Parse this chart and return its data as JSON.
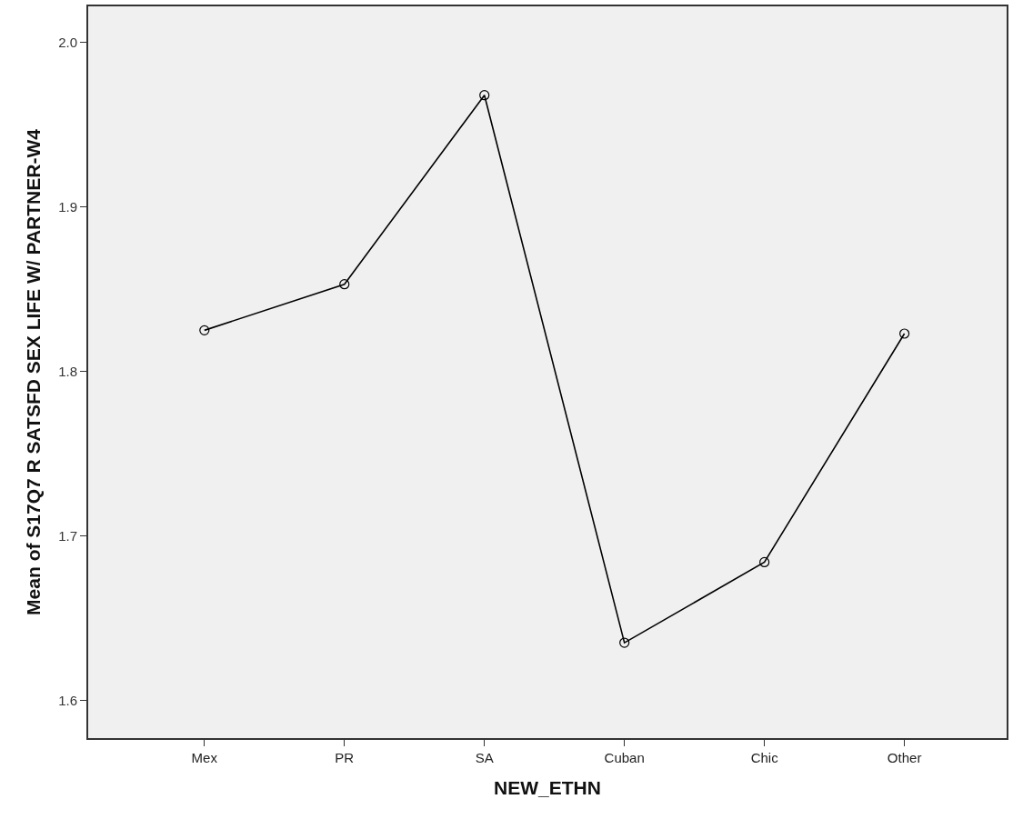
{
  "chart_data": {
    "type": "line",
    "xlabel": "NEW_ETHN",
    "ylabel": "Mean of S17Q7 R SATSFD SEX LIFE W/ PARTNER-W4",
    "categories": [
      "Mex",
      "PR",
      "SA",
      "Cuban",
      "Chic",
      "Other"
    ],
    "series": [
      {
        "color": "#000000",
        "values": [
          1.825,
          1.853,
          1.968,
          1.635,
          1.684,
          1.823
        ]
      }
    ],
    "ylim": [
      1.577,
      2.022
    ],
    "yticks": [
      {
        "value": 1.6,
        "label": "1.6"
      },
      {
        "value": 1.7,
        "label": "1.7"
      },
      {
        "value": 1.8,
        "label": "1.8"
      },
      {
        "value": 1.9,
        "label": "1.9"
      },
      {
        "value": 2.0,
        "label": "2.0"
      }
    ],
    "grid": false,
    "marker": "circle",
    "line_style": "solid"
  }
}
